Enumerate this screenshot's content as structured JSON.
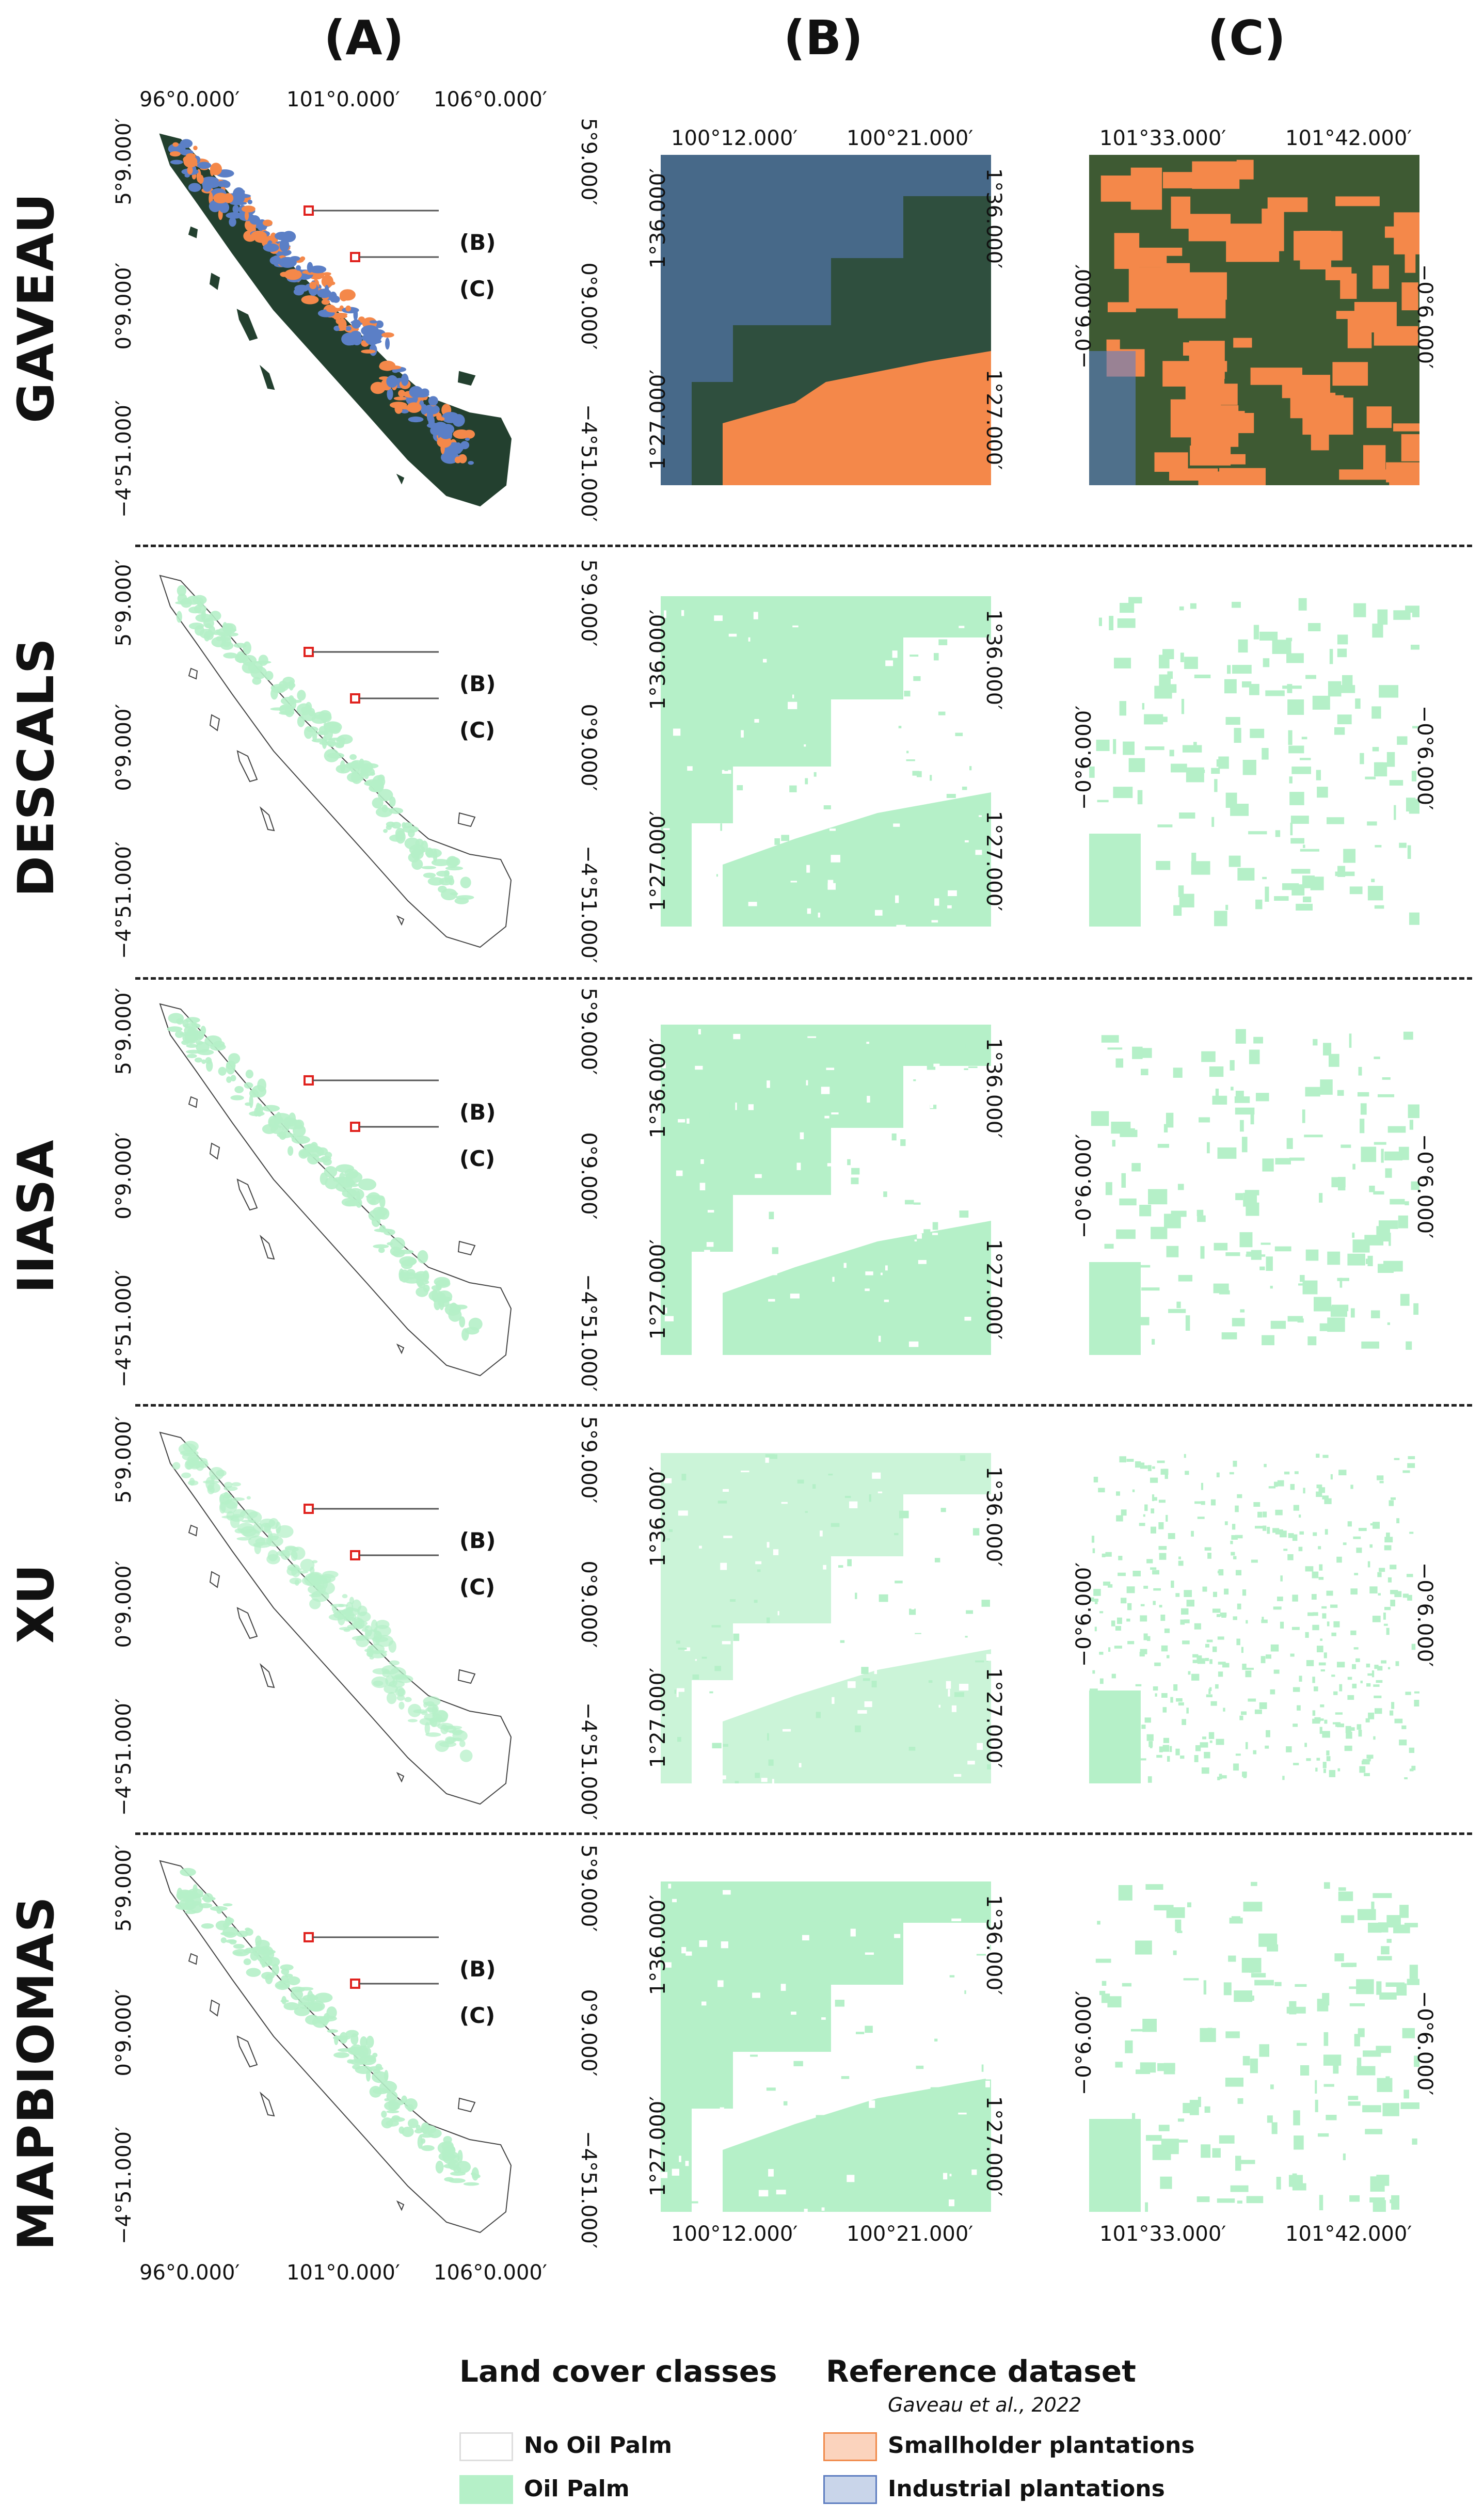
{
  "columns": [
    "(A)",
    "(B)",
    "(C)"
  ],
  "rows": [
    {
      "label": "GAVEAU",
      "key": "gaveau",
      "style": "reference"
    },
    {
      "label": "DESCALS",
      "key": "descals",
      "style": "dense"
    },
    {
      "label": "IIASA",
      "key": "iiasa",
      "style": "dense"
    },
    {
      "label": "XU",
      "key": "xu",
      "style": "sparse"
    },
    {
      "label": "MAPBIOMAS",
      "key": "mapbiomas",
      "style": "dense"
    }
  ],
  "coords": {
    "a_lon": [
      "96°0.000′",
      "101°0.000′",
      "106°0.000′"
    ],
    "a_lat": [
      "5°9.000′",
      "0°9.000′",
      "−4°51.000′"
    ],
    "b_lon": [
      "100°12.000′",
      "100°21.000′"
    ],
    "b_lat": [
      "1°36.000′",
      "1°27.000′"
    ],
    "c_lon": [
      "101°33.000′",
      "101°42.000′"
    ],
    "c_lat": [
      "−0°6.000′"
    ]
  },
  "callouts": [
    "(B)",
    "(C)"
  ],
  "legend": {
    "land_cover_title": "Land cover classes",
    "reference_title": "Reference dataset",
    "reference_source": "Gaveau et al., 2022",
    "items": [
      {
        "label": "No Oil Palm",
        "fill": "#ffffff",
        "stroke": "#dddddd"
      },
      {
        "label": "Oil Palm",
        "fill": "#b5f0c8",
        "stroke": "#b5f0c8"
      },
      {
        "label": "Smallholder plantations",
        "fill": "#fbd3bd",
        "stroke": "#f08a4b"
      },
      {
        "label": "Industrial plantations",
        "fill": "#c9d5ea",
        "stroke": "#5e7ec0"
      }
    ]
  },
  "colors": {
    "oil_palm": "#b5f0c8",
    "smallholder": "#f4884a",
    "industrial": "#5b7fc6",
    "forest": "#23402f",
    "callout_box": "#e0231f"
  }
}
